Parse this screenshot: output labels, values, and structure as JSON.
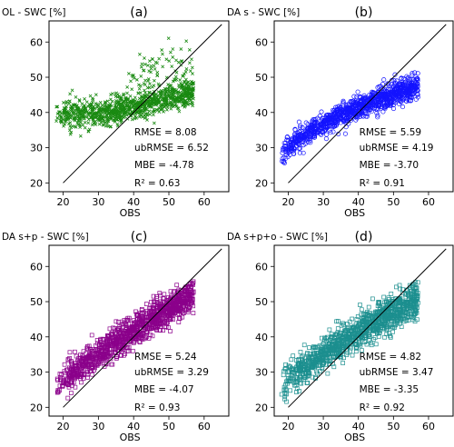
{
  "chart_data": [
    {
      "type": "scatter",
      "panel_label": "(a)",
      "ylabel": "OL - SWC [%]",
      "xlabel": "OBS",
      "xticks": [
        20,
        30,
        40,
        50,
        60
      ],
      "yticks": [
        20,
        30,
        40,
        50,
        60
      ],
      "xlim": [
        16,
        67
      ],
      "ylim": [
        17.5,
        66
      ],
      "marker": "x",
      "color": "#1a8a12",
      "one_to_one_line": [
        20,
        65
      ],
      "stats": [
        {
          "label": "RMSE = 8.08"
        },
        {
          "label": "ubRMSE = 6.52"
        },
        {
          "label": "MBE = -4.78"
        },
        {
          "label": "R² = 0.63"
        }
      ],
      "cloud": {
        "seed": 11,
        "n": 1100,
        "x_range": [
          18,
          57
        ],
        "y_at_x_min": 39.0,
        "y_at_x_max": 46.0,
        "curve": 0.6,
        "y_spread": 2.0,
        "upper_tail": true
      }
    },
    {
      "type": "scatter",
      "panel_label": "(b)",
      "ylabel": "DA s - SWC [%]",
      "xlabel": "OBS",
      "xticks": [
        20,
        30,
        40,
        50,
        60
      ],
      "yticks": [
        20,
        30,
        40,
        50,
        60
      ],
      "xlim": [
        16,
        67
      ],
      "ylim": [
        17.5,
        66
      ],
      "marker": "circle",
      "color": "#1414ff",
      "one_to_one_line": [
        20,
        65
      ],
      "stats": [
        {
          "label": "RMSE = 5.59"
        },
        {
          "label": "ubRMSE = 4.19"
        },
        {
          "label": "MBE = -3.70"
        },
        {
          "label": "R² = 0.91"
        }
      ],
      "cloud": {
        "seed": 23,
        "n": 1100,
        "x_range": [
          18,
          57
        ],
        "y_at_x_min": 27.0,
        "y_at_x_max": 47.5,
        "curve": 1.6,
        "y_spread": 1.6,
        "upper_tail": false
      }
    },
    {
      "type": "scatter",
      "panel_label": "(c)",
      "ylabel": "DA s+p - SWC [%]",
      "xlabel": "OBS",
      "xticks": [
        20,
        30,
        40,
        50,
        60
      ],
      "yticks": [
        20,
        30,
        40,
        50,
        60
      ],
      "xlim": [
        16,
        67
      ],
      "ylim": [
        17.5,
        66
      ],
      "marker": "square",
      "color": "#8b008b",
      "one_to_one_line": [
        20,
        65
      ],
      "stats": [
        {
          "label": "RMSE = 5.24"
        },
        {
          "label": "ubRMSE = 3.29"
        },
        {
          "label": "MBE = -4.07"
        },
        {
          "label": "R² = 0.93"
        }
      ],
      "cloud": {
        "seed": 37,
        "n": 1100,
        "x_range": [
          18,
          57
        ],
        "y_at_x_min": 25.0,
        "y_at_x_max": 52.0,
        "curve": 1.2,
        "y_spread": 2.2,
        "upper_tail": false
      }
    },
    {
      "type": "scatter",
      "panel_label": "(d)",
      "ylabel": "DA s+p+o - SWC [%]",
      "xlabel": "OBS",
      "xticks": [
        20,
        30,
        40,
        50,
        60
      ],
      "yticks": [
        20,
        30,
        40,
        50,
        60
      ],
      "xlim": [
        16,
        67
      ],
      "ylim": [
        17.5,
        66
      ],
      "marker": "square",
      "color": "#1c8f8f",
      "one_to_one_line": [
        20,
        65
      ],
      "stats": [
        {
          "label": "RMSE = 4.82"
        },
        {
          "label": "ubRMSE = 3.47"
        },
        {
          "label": "MBE = -3.35"
        },
        {
          "label": "R² = 0.92"
        }
      ],
      "cloud": {
        "seed": 53,
        "n": 1100,
        "x_range": [
          18,
          57
        ],
        "y_at_x_min": 25.5,
        "y_at_x_max": 51.0,
        "curve": 1.2,
        "y_spread": 2.4,
        "upper_tail": false
      }
    }
  ]
}
